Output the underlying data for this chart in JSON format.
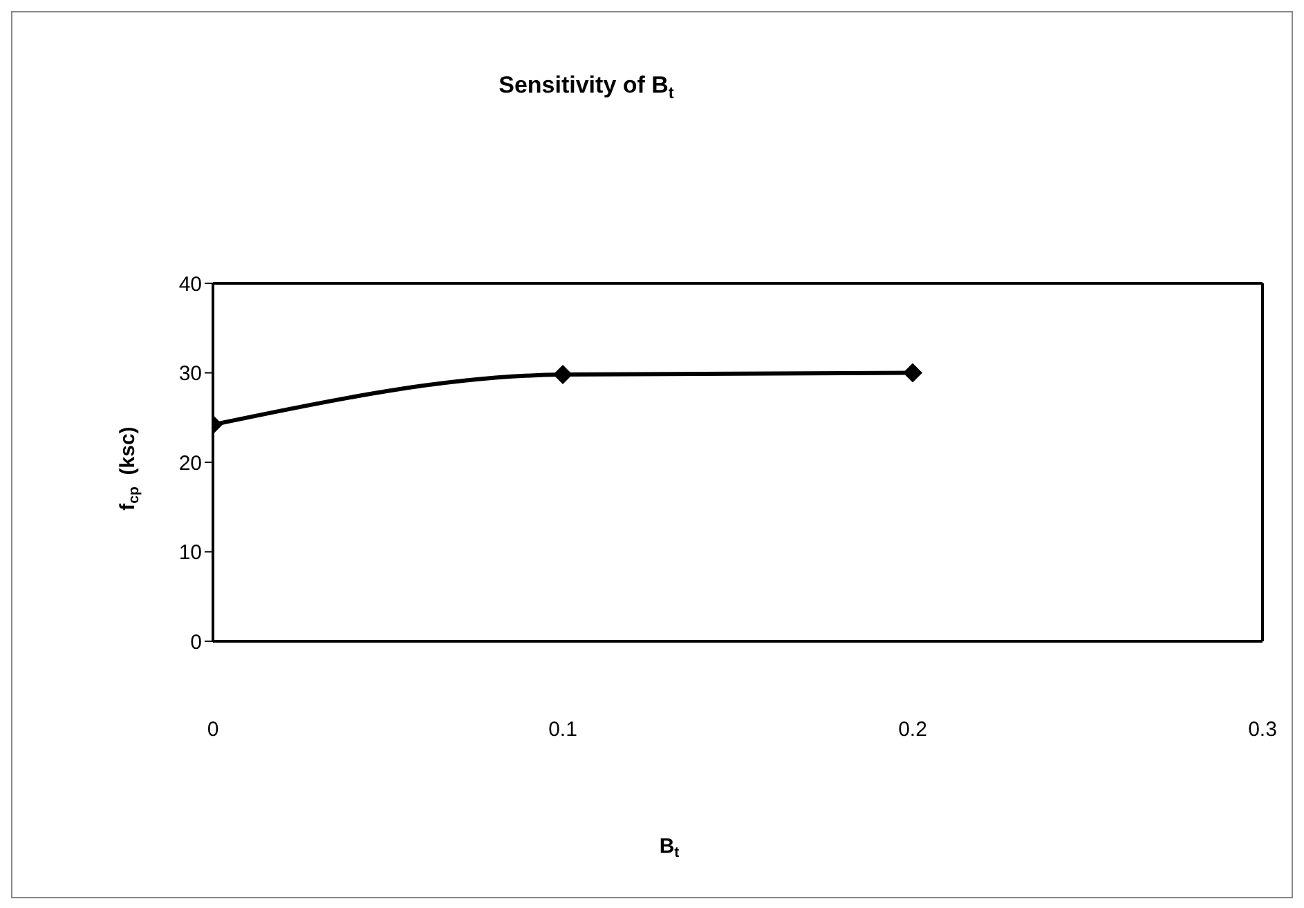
{
  "chart_data": {
    "type": "line",
    "title": "Sensitivity of B$_{t}$",
    "xlabel": "B$_{t}$",
    "ylabel": "f$_{cp}$  (ksc)",
    "x": [
      0,
      0.1,
      0.2
    ],
    "series": [
      {
        "color": "#000000",
        "values": [
          24.2,
          29.8,
          30
        ]
      }
    ],
    "xlim": [
      0,
      0.3
    ],
    "xticks": [
      0,
      0.1,
      0.2,
      0.3
    ],
    "ylim": [
      0,
      40
    ],
    "yticks": [
      0,
      10,
      20,
      30,
      40
    ],
    "marker": "diamond",
    "line_style": "solid"
  }
}
